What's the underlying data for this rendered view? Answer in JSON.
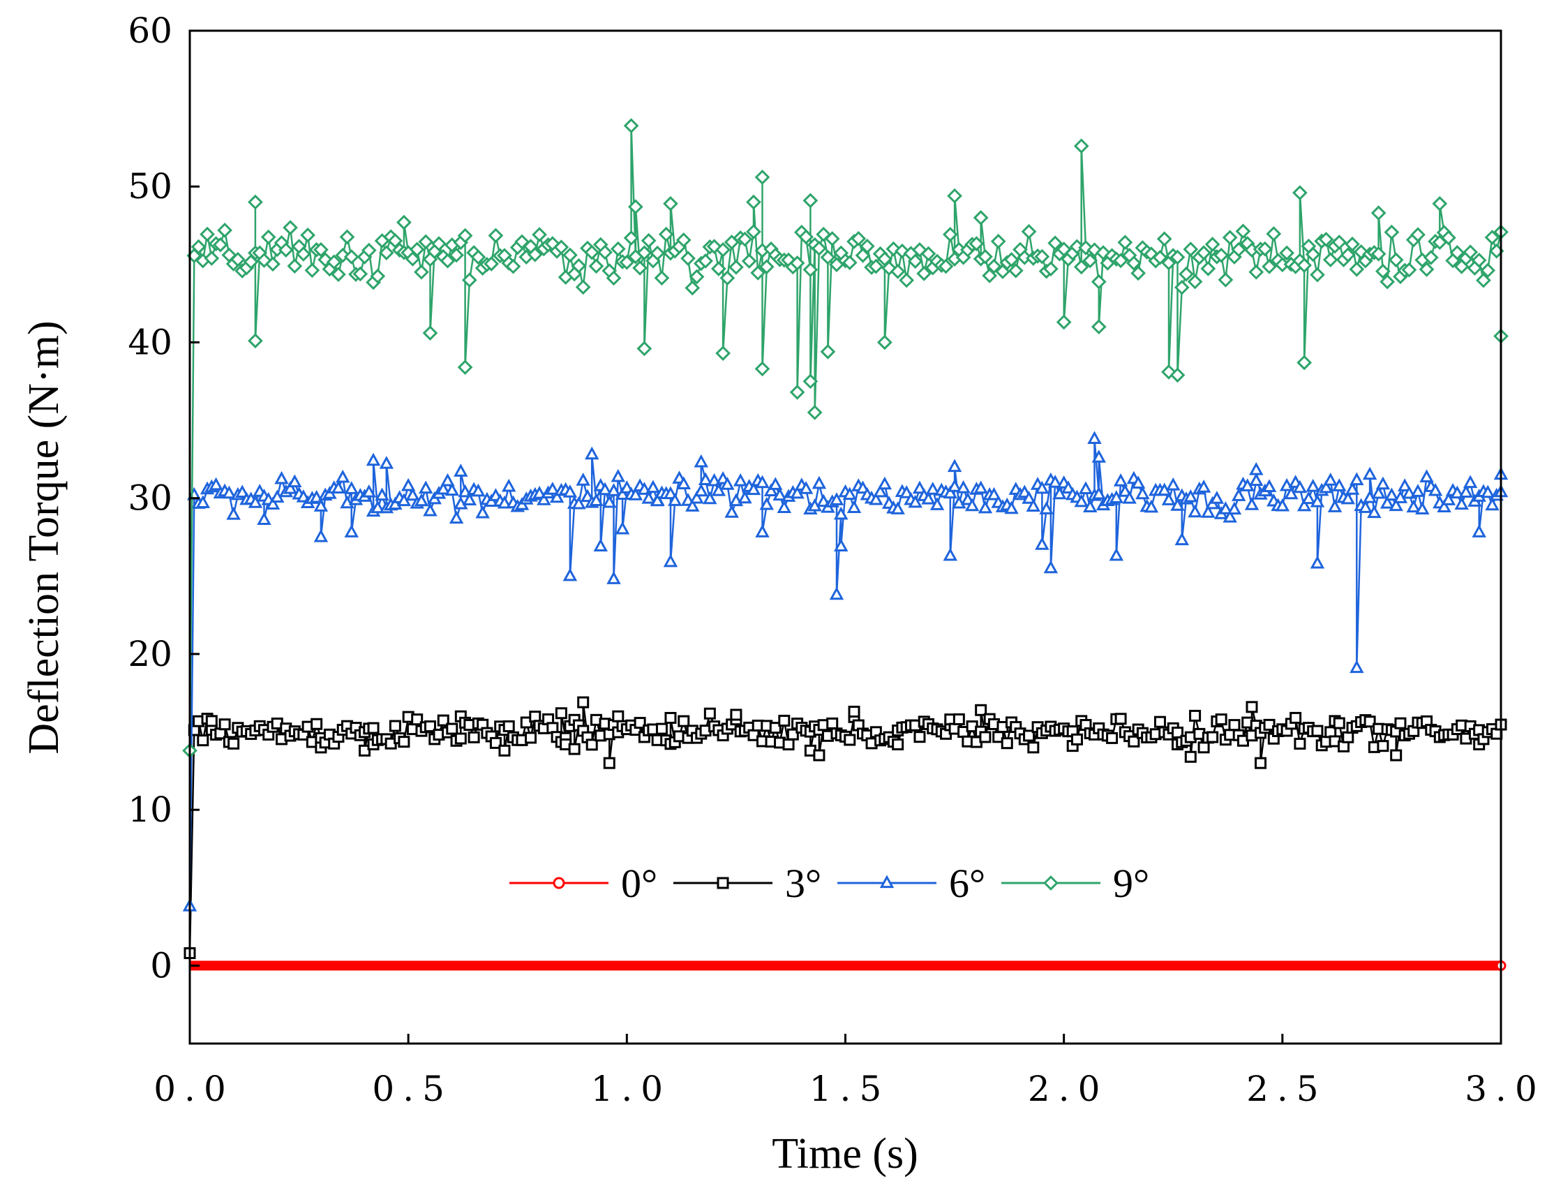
{
  "chart_data": {
    "type": "line",
    "title": "",
    "xlabel": "Time (s)",
    "ylabel": "Deflection Torque (N·m)",
    "xlim": [
      0.0,
      3.0
    ],
    "ylim": [
      -5,
      60
    ],
    "xticks": [
      0.0,
      0.5,
      1.0,
      1.5,
      2.0,
      2.5,
      3.0
    ],
    "xtick_labels": [
      "0.0",
      "0.5",
      "1.0",
      "1.5",
      "2.0",
      "2.5",
      "3.0"
    ],
    "yticks": [
      0,
      10,
      20,
      30,
      40,
      50,
      60
    ],
    "ytick_labels": [
      "0",
      "10",
      "20",
      "30",
      "40",
      "50",
      "60"
    ],
    "grid": false,
    "legend_position": "center",
    "series": [
      {
        "name": "0°",
        "color": "#ff0000",
        "marker": "circle",
        "mean": 0.0,
        "noise": 0.0,
        "start_value": 0.0,
        "outliers": []
      },
      {
        "name": "3°",
        "color": "#000000",
        "marker": "square",
        "mean": 15.0,
        "noise": 0.45,
        "start_value": 0.8,
        "outliers": [
          [
            0.05,
            15.7
          ],
          [
            0.3,
            14.0
          ],
          [
            0.4,
            13.8
          ],
          [
            0.42,
            14.2
          ],
          [
            0.62,
            16.0
          ],
          [
            0.72,
            13.8
          ],
          [
            0.85,
            16.2
          ],
          [
            0.86,
            14.2
          ],
          [
            0.88,
            13.9
          ],
          [
            0.9,
            16.9
          ],
          [
            0.96,
            13.0
          ],
          [
            0.98,
            16.0
          ],
          [
            1.1,
            15.9
          ],
          [
            1.25,
            16.1
          ],
          [
            1.42,
            13.8
          ],
          [
            1.44,
            13.5
          ],
          [
            1.52,
            16.3
          ],
          [
            1.62,
            14.2
          ],
          [
            1.74,
            15.8
          ],
          [
            1.81,
            16.4
          ],
          [
            2.02,
            14.1
          ],
          [
            2.26,
            14.2
          ],
          [
            2.29,
            13.4
          ],
          [
            2.43,
            16.6
          ],
          [
            2.45,
            13.0
          ],
          [
            2.62,
            15.7
          ],
          [
            2.76,
            13.5
          ],
          [
            2.95,
            14.2
          ]
        ]
      },
      {
        "name": "6°",
        "color": "#1e64dc",
        "marker": "triangle",
        "mean": 30.1,
        "noise": 0.55,
        "start_value": 3.8,
        "outliers": [
          [
            0.17,
            28.6
          ],
          [
            0.3,
            27.5
          ],
          [
            0.37,
            27.8
          ],
          [
            0.42,
            32.4
          ],
          [
            0.45,
            32.2
          ],
          [
            0.62,
            31.7
          ],
          [
            0.87,
            25.0
          ],
          [
            0.92,
            32.8
          ],
          [
            0.94,
            26.9
          ],
          [
            0.97,
            24.8
          ],
          [
            0.99,
            28.0
          ],
          [
            1.07,
            29.8
          ],
          [
            1.1,
            25.9
          ],
          [
            1.17,
            32.3
          ],
          [
            1.31,
            27.8
          ],
          [
            1.48,
            23.8
          ],
          [
            1.49,
            26.9
          ],
          [
            1.74,
            26.3
          ],
          [
            1.75,
            32.0
          ],
          [
            1.95,
            27.0
          ],
          [
            1.97,
            25.5
          ],
          [
            2.07,
            33.8
          ],
          [
            2.08,
            32.6
          ],
          [
            2.12,
            26.3
          ],
          [
            2.27,
            27.3
          ],
          [
            2.44,
            31.8
          ],
          [
            2.58,
            25.8
          ],
          [
            2.67,
            19.1
          ],
          [
            2.7,
            31.5
          ],
          [
            2.95,
            27.8
          ],
          [
            3.0,
            31.5
          ]
        ]
      },
      {
        "name": "9°",
        "color": "#2ea46a",
        "marker": "diamond",
        "mean": 45.5,
        "noise": 0.8,
        "start_value": 13.8,
        "outliers": [
          [
            0.15,
            49.0
          ],
          [
            0.15,
            40.1
          ],
          [
            0.49,
            47.7
          ],
          [
            0.55,
            40.6
          ],
          [
            0.63,
            38.4
          ],
          [
            1.01,
            53.9
          ],
          [
            1.02,
            48.7
          ],
          [
            1.04,
            39.6
          ],
          [
            1.1,
            48.9
          ],
          [
            1.22,
            39.3
          ],
          [
            1.29,
            49.0
          ],
          [
            1.31,
            50.6
          ],
          [
            1.31,
            38.3
          ],
          [
            1.39,
            36.8
          ],
          [
            1.42,
            49.1
          ],
          [
            1.42,
            37.5
          ],
          [
            1.43,
            35.5
          ],
          [
            1.46,
            39.4
          ],
          [
            1.59,
            40.0
          ],
          [
            1.75,
            49.4
          ],
          [
            1.81,
            48.0
          ],
          [
            2.0,
            41.3
          ],
          [
            2.04,
            52.6
          ],
          [
            2.08,
            41.0
          ],
          [
            2.24,
            38.1
          ],
          [
            2.26,
            37.9
          ],
          [
            2.54,
            49.6
          ],
          [
            2.55,
            38.7
          ],
          [
            2.72,
            48.3
          ],
          [
            2.86,
            48.9
          ],
          [
            3.0,
            40.4
          ]
        ]
      }
    ]
  }
}
